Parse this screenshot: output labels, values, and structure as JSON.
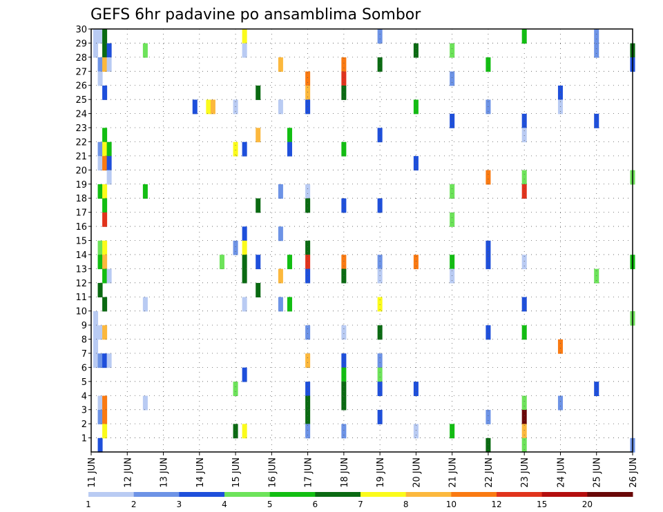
{
  "chart_data": {
    "type": "heatmap",
    "title": "GEFS 6hr padavine po ansamblima Sombor",
    "y_ticks": [
      "1",
      "2",
      "3",
      "4",
      "5",
      "6",
      "7",
      "8",
      "9",
      "10",
      "11",
      "12",
      "13",
      "14",
      "15",
      "16",
      "17",
      "18",
      "19",
      "20",
      "21",
      "22",
      "23",
      "24",
      "25",
      "26",
      "27",
      "28",
      "29",
      "30"
    ],
    "y_range": [
      0,
      30
    ],
    "x_range": [
      0,
      30
    ],
    "x_ticks": [
      {
        "x": 0,
        "label": "11 JUN"
      },
      {
        "x": 2,
        "label": "12 JUN"
      },
      {
        "x": 4,
        "label": "13 JUN"
      },
      {
        "x": 6,
        "label": "14 JUN"
      },
      {
        "x": 8,
        "label": "15 JUN"
      },
      {
        "x": 10,
        "label": "16 JUN"
      },
      {
        "x": 12,
        "label": "17 JUN"
      },
      {
        "x": 14,
        "label": "18 JUN"
      },
      {
        "x": 16,
        "label": "19 JUN"
      },
      {
        "x": 18,
        "label": "20 JUN"
      },
      {
        "x": 20,
        "label": "21 JUN"
      },
      {
        "x": 22,
        "label": "22 JUN"
      },
      {
        "x": 24,
        "label": "23 JUN"
      },
      {
        "x": 26,
        "label": "24 JUN"
      },
      {
        "x": 28,
        "label": "25 JUN"
      },
      {
        "x": 30,
        "label": "26 JUN"
      }
    ],
    "grid": true,
    "colorbar": {
      "labels": [
        "1",
        "2",
        "3",
        "4",
        "5",
        "6",
        "7",
        "8",
        "10",
        "12",
        "15",
        "20"
      ],
      "colors": [
        "#b9cbf3",
        "#6d93e6",
        "#1e4fdb",
        "#6de35a",
        "#12be12",
        "#0a6a12",
        "#fbfb1b",
        "#fcb83d",
        "#fa7a12",
        "#e1331c",
        "#b40e0e",
        "#6a0808"
      ]
    },
    "cells": [
      {
        "x": 0.25,
        "y": 29,
        "v": 1
      },
      {
        "x": 0.25,
        "y": 28,
        "v": 1
      },
      {
        "x": 0.25,
        "y": 9,
        "v": 1
      },
      {
        "x": 0.25,
        "y": 8,
        "v": 1
      },
      {
        "x": 0.25,
        "y": 7,
        "v": 1
      },
      {
        "x": 0.25,
        "y": 6,
        "v": 1
      },
      {
        "x": 0.5,
        "y": 29,
        "v": 1
      },
      {
        "x": 0.5,
        "y": 27,
        "v": 2
      },
      {
        "x": 0.5,
        "y": 26,
        "v": 1
      },
      {
        "x": 0.5,
        "y": 21,
        "v": 2
      },
      {
        "x": 0.5,
        "y": 20,
        "v": 1
      },
      {
        "x": 0.5,
        "y": 18,
        "v": 5
      },
      {
        "x": 0.5,
        "y": 14,
        "v": 4
      },
      {
        "x": 0.5,
        "y": 13,
        "v": 5
      },
      {
        "x": 0.5,
        "y": 11,
        "v": 6
      },
      {
        "x": 0.5,
        "y": 8,
        "v": 1
      },
      {
        "x": 0.5,
        "y": 6,
        "v": 2
      },
      {
        "x": 0.5,
        "y": 3,
        "v": 1
      },
      {
        "x": 0.5,
        "y": 2,
        "v": 2
      },
      {
        "x": 0.5,
        "y": 0,
        "v": 3
      },
      {
        "x": 0.75,
        "y": 29,
        "v": 6
      },
      {
        "x": 0.75,
        "y": 28,
        "v": 6
      },
      {
        "x": 0.75,
        "y": 27,
        "v": 8
      },
      {
        "x": 0.75,
        "y": 25,
        "v": 3
      },
      {
        "x": 0.75,
        "y": 22,
        "v": 5
      },
      {
        "x": 0.75,
        "y": 21,
        "v": 7
      },
      {
        "x": 0.75,
        "y": 20,
        "v": 10
      },
      {
        "x": 0.75,
        "y": 18,
        "v": 7
      },
      {
        "x": 0.75,
        "y": 17,
        "v": 5
      },
      {
        "x": 0.75,
        "y": 16,
        "v": 12
      },
      {
        "x": 0.75,
        "y": 14,
        "v": 7
      },
      {
        "x": 0.75,
        "y": 13,
        "v": 8
      },
      {
        "x": 0.75,
        "y": 12,
        "v": 5
      },
      {
        "x": 0.75,
        "y": 10,
        "v": 6
      },
      {
        "x": 0.75,
        "y": 8,
        "v": 8
      },
      {
        "x": 0.75,
        "y": 6,
        "v": 3
      },
      {
        "x": 0.75,
        "y": 3,
        "v": 10
      },
      {
        "x": 0.75,
        "y": 2,
        "v": 10
      },
      {
        "x": 0.75,
        "y": 1,
        "v": 7
      },
      {
        "x": 1,
        "y": 28,
        "v": 3
      },
      {
        "x": 1,
        "y": 27,
        "v": 1
      },
      {
        "x": 1,
        "y": 21,
        "v": 5
      },
      {
        "x": 1,
        "y": 20,
        "v": 3
      },
      {
        "x": 1,
        "y": 19,
        "v": 1
      },
      {
        "x": 1,
        "y": 12,
        "v": 1
      },
      {
        "x": 1,
        "y": 6,
        "v": 1
      },
      {
        "x": 3,
        "y": 28,
        "v": 4
      },
      {
        "x": 3,
        "y": 18,
        "v": 5
      },
      {
        "x": 3,
        "y": 10,
        "v": 1
      },
      {
        "x": 3,
        "y": 3,
        "v": 1
      },
      {
        "x": 5.75,
        "y": 24,
        "v": 3
      },
      {
        "x": 6.5,
        "y": 24,
        "v": 7
      },
      {
        "x": 6.75,
        "y": 24,
        "v": 8
      },
      {
        "x": 7.25,
        "y": 13,
        "v": 4
      },
      {
        "x": 8,
        "y": 24,
        "v": 1
      },
      {
        "x": 8,
        "y": 21,
        "v": 7
      },
      {
        "x": 8,
        "y": 14,
        "v": 2
      },
      {
        "x": 8,
        "y": 4,
        "v": 4
      },
      {
        "x": 8,
        "y": 1,
        "v": 6
      },
      {
        "x": 8.5,
        "y": 29,
        "v": 7
      },
      {
        "x": 8.5,
        "y": 28,
        "v": 1
      },
      {
        "x": 8.5,
        "y": 21,
        "v": 3
      },
      {
        "x": 8.5,
        "y": 15,
        "v": 3
      },
      {
        "x": 8.5,
        "y": 14,
        "v": 7
      },
      {
        "x": 8.5,
        "y": 13,
        "v": 6
      },
      {
        "x": 8.5,
        "y": 12,
        "v": 6
      },
      {
        "x": 8.5,
        "y": 10,
        "v": 1
      },
      {
        "x": 8.5,
        "y": 5,
        "v": 3
      },
      {
        "x": 8.5,
        "y": 1,
        "v": 7
      },
      {
        "x": 9.25,
        "y": 25,
        "v": 6
      },
      {
        "x": 9.25,
        "y": 22,
        "v": 9
      },
      {
        "x": 9.25,
        "y": 17,
        "v": 6
      },
      {
        "x": 9.25,
        "y": 13,
        "v": 3
      },
      {
        "x": 9.25,
        "y": 11,
        "v": 6
      },
      {
        "x": 10.5,
        "y": 27,
        "v": 8
      },
      {
        "x": 10.5,
        "y": 24,
        "v": 1
      },
      {
        "x": 10.5,
        "y": 18,
        "v": 2
      },
      {
        "x": 10.5,
        "y": 15,
        "v": 2
      },
      {
        "x": 10.5,
        "y": 12,
        "v": 9
      },
      {
        "x": 10.5,
        "y": 10,
        "v": 2
      },
      {
        "x": 11,
        "y": 22,
        "v": 5
      },
      {
        "x": 11,
        "y": 21,
        "v": 3
      },
      {
        "x": 11,
        "y": 13,
        "v": 5
      },
      {
        "x": 11,
        "y": 10,
        "v": 5
      },
      {
        "x": 12,
        "y": 26,
        "v": 11
      },
      {
        "x": 12,
        "y": 25,
        "v": 9
      },
      {
        "x": 12,
        "y": 24,
        "v": 3
      },
      {
        "x": 12,
        "y": 18,
        "v": 1
      },
      {
        "x": 12,
        "y": 17,
        "v": 6
      },
      {
        "x": 12,
        "y": 14,
        "v": 6
      },
      {
        "x": 12,
        "y": 13,
        "v": 12
      },
      {
        "x": 12,
        "y": 12,
        "v": 3
      },
      {
        "x": 12,
        "y": 8,
        "v": 2
      },
      {
        "x": 12,
        "y": 6,
        "v": 9
      },
      {
        "x": 12,
        "y": 4,
        "v": 3
      },
      {
        "x": 12,
        "y": 3,
        "v": 6
      },
      {
        "x": 12,
        "y": 2,
        "v": 6
      },
      {
        "x": 12,
        "y": 1,
        "v": 2
      },
      {
        "x": 14,
        "y": 27,
        "v": 11
      },
      {
        "x": 14,
        "y": 26,
        "v": 13
      },
      {
        "x": 14,
        "y": 25,
        "v": 6
      },
      {
        "x": 14,
        "y": 21,
        "v": 5
      },
      {
        "x": 14,
        "y": 17,
        "v": 3
      },
      {
        "x": 14,
        "y": 13,
        "v": 10
      },
      {
        "x": 14,
        "y": 12,
        "v": 6
      },
      {
        "x": 14,
        "y": 8,
        "v": 1
      },
      {
        "x": 14,
        "y": 6,
        "v": 3
      },
      {
        "x": 14,
        "y": 5,
        "v": 5
      },
      {
        "x": 14,
        "y": 4,
        "v": 6
      },
      {
        "x": 14,
        "y": 3,
        "v": 6
      },
      {
        "x": 14,
        "y": 1,
        "v": 2
      },
      {
        "x": 16,
        "y": 29,
        "v": 2
      },
      {
        "x": 16,
        "y": 27,
        "v": 6
      },
      {
        "x": 16,
        "y": 22,
        "v": 3
      },
      {
        "x": 16,
        "y": 17,
        "v": 3
      },
      {
        "x": 16,
        "y": 13,
        "v": 2
      },
      {
        "x": 16,
        "y": 12,
        "v": 1
      },
      {
        "x": 16,
        "y": 10,
        "v": 7
      },
      {
        "x": 16,
        "y": 8,
        "v": 6
      },
      {
        "x": 16,
        "y": 6,
        "v": 2
      },
      {
        "x": 16,
        "y": 5,
        "v": 4
      },
      {
        "x": 16,
        "y": 4,
        "v": 3
      },
      {
        "x": 16,
        "y": 2,
        "v": 3
      },
      {
        "x": 18,
        "y": 28,
        "v": 6
      },
      {
        "x": 18,
        "y": 24,
        "v": 5
      },
      {
        "x": 18,
        "y": 20,
        "v": 3
      },
      {
        "x": 18,
        "y": 13,
        "v": 10
      },
      {
        "x": 18,
        "y": 4,
        "v": 3
      },
      {
        "x": 18,
        "y": 1,
        "v": 1
      },
      {
        "x": 20,
        "y": 28,
        "v": 4
      },
      {
        "x": 20,
        "y": 26,
        "v": 2
      },
      {
        "x": 20,
        "y": 23,
        "v": 3
      },
      {
        "x": 20,
        "y": 18,
        "v": 4
      },
      {
        "x": 20,
        "y": 16,
        "v": 4
      },
      {
        "x": 20,
        "y": 13,
        "v": 5
      },
      {
        "x": 20,
        "y": 12,
        "v": 1
      },
      {
        "x": 20,
        "y": 1,
        "v": 5
      },
      {
        "x": 22,
        "y": 27,
        "v": 5
      },
      {
        "x": 22,
        "y": 24,
        "v": 2
      },
      {
        "x": 22,
        "y": 19,
        "v": 10
      },
      {
        "x": 22,
        "y": 14,
        "v": 3
      },
      {
        "x": 22,
        "y": 13,
        "v": 3
      },
      {
        "x": 22,
        "y": 8,
        "v": 3
      },
      {
        "x": 22,
        "y": 2,
        "v": 2
      },
      {
        "x": 22,
        "y": 0,
        "v": 6
      },
      {
        "x": 24,
        "y": 29,
        "v": 5
      },
      {
        "x": 24,
        "y": 23,
        "v": 3
      },
      {
        "x": 24,
        "y": 22,
        "v": 1
      },
      {
        "x": 24,
        "y": 19,
        "v": 4
      },
      {
        "x": 24,
        "y": 18,
        "v": 12
      },
      {
        "x": 24,
        "y": 13,
        "v": 1
      },
      {
        "x": 24,
        "y": 10,
        "v": 3
      },
      {
        "x": 24,
        "y": 8,
        "v": 5
      },
      {
        "x": 24,
        "y": 3,
        "v": 4
      },
      {
        "x": 24,
        "y": 2,
        "v": 20
      },
      {
        "x": 24,
        "y": 1,
        "v": 9
      },
      {
        "x": 24,
        "y": 0,
        "v": 4
      },
      {
        "x": 26,
        "y": 25,
        "v": 3
      },
      {
        "x": 26,
        "y": 24,
        "v": 1
      },
      {
        "x": 26,
        "y": 7,
        "v": 10
      },
      {
        "x": 26,
        "y": 3,
        "v": 2
      },
      {
        "x": 28,
        "y": 29,
        "v": 2
      },
      {
        "x": 28,
        "y": 28,
        "v": 2
      },
      {
        "x": 28,
        "y": 23,
        "v": 3
      },
      {
        "x": 28,
        "y": 12,
        "v": 4
      },
      {
        "x": 28,
        "y": 4,
        "v": 3
      },
      {
        "x": 30,
        "y": 28,
        "v": 6
      },
      {
        "x": 30,
        "y": 27,
        "v": 3
      },
      {
        "x": 30,
        "y": 19,
        "v": 4
      },
      {
        "x": 30,
        "y": 13,
        "v": 5
      },
      {
        "x": 30,
        "y": 9,
        "v": 4
      },
      {
        "x": 30,
        "y": 0,
        "v": 2
      }
    ]
  }
}
